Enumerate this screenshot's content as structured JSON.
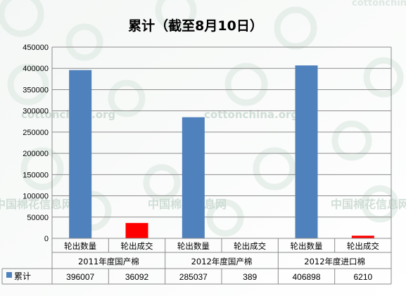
{
  "watermark": {
    "site": "cottonchina.org",
    "cn": "中国棉花信息网"
  },
  "chart_data": {
    "type": "bar",
    "title": "累计（截至8月10日）",
    "ylim": [
      0,
      450000
    ],
    "yticks": [
      0,
      50000,
      100000,
      150000,
      200000,
      250000,
      300000,
      350000,
      400000,
      450000
    ],
    "grid": true,
    "groups": [
      "2011年度国产棉",
      "2012年度国产棉",
      "2012年度进口棉"
    ],
    "categories": [
      "轮出数量",
      "轮出成交",
      "轮出数量",
      "轮出成交",
      "轮出数量",
      "轮出成交"
    ],
    "series": [
      {
        "name": "累计",
        "values": [
          396007,
          36092,
          285037,
          389,
          406898,
          6210
        ],
        "colors": [
          "#4f81bd",
          "#ff0000",
          "#4f81bd",
          "#ff0000",
          "#4f81bd",
          "#ff0000"
        ],
        "legend_color": "#4f81bd"
      }
    ]
  }
}
